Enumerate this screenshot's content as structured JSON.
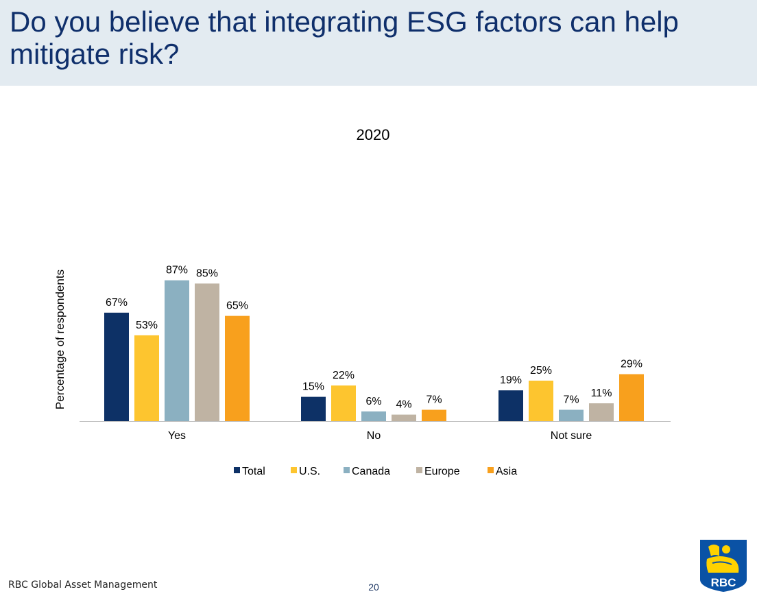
{
  "header": {
    "title": "Do you believe that integrating ESG factors can help mitigate risk?"
  },
  "footer": {
    "brand": "RBC Global Asset Management",
    "page_number": "20"
  },
  "logo": {
    "text": "RBC"
  },
  "colors": {
    "header_bg": "#e3ebf1",
    "title": "#0f2f6b",
    "Total": "#0d3166",
    "U.S.": "#fdc52f",
    "Canada": "#8bb0c1",
    "Europe": "#bfb3a3",
    "Asia": "#f8a01d"
  },
  "chart_data": {
    "type": "bar",
    "title": "2020",
    "xlabel": "",
    "ylabel": "Percentage of respondents",
    "categories": [
      "Yes",
      "No",
      "Not sure"
    ],
    "series": [
      {
        "name": "Total",
        "values": [
          67,
          15,
          19
        ],
        "labels": [
          "67%",
          "15%",
          "19%"
        ]
      },
      {
        "name": "U.S.",
        "values": [
          53,
          22,
          25
        ],
        "labels": [
          "53%",
          "22%",
          "25%"
        ]
      },
      {
        "name": "Canada",
        "values": [
          87,
          6,
          7
        ],
        "labels": [
          "87%",
          "6%",
          "7%"
        ]
      },
      {
        "name": "Europe",
        "values": [
          85,
          4,
          11
        ],
        "labels": [
          "85%",
          "4%",
          "11%"
        ]
      },
      {
        "name": "Asia",
        "values": [
          65,
          7,
          29
        ],
        "labels": [
          "65%",
          "7%",
          "29%"
        ]
      }
    ],
    "ylim": [
      0,
      100
    ],
    "grid": false,
    "legend_position": "bottom"
  }
}
